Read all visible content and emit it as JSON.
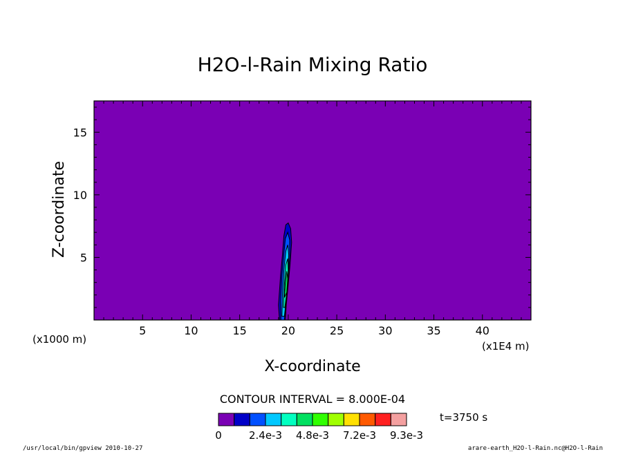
{
  "chart_data": {
    "type": "heatmap",
    "title": "H2O-l-Rain Mixing Ratio",
    "xlabel": "X-coordinate",
    "ylabel": "Z-coordinate",
    "x_unit_left": "(x1000 m)",
    "x_unit_right": "(x1E4 m)",
    "xlim": [
      0,
      45
    ],
    "ylim": [
      0,
      17.5
    ],
    "x_ticks": [
      5,
      10,
      15,
      20,
      25,
      30,
      35,
      40
    ],
    "y_ticks": [
      5,
      10,
      15
    ],
    "background_color": "#7a00b4",
    "contour_interval_label": "CONTOUR INTERVAL = 8.000E-04",
    "time_label": "t=3750 s",
    "colorbar": {
      "colors": [
        "#7a00b4",
        "#0000c8",
        "#0050ff",
        "#00c8ff",
        "#00ffc0",
        "#00e060",
        "#30ff00",
        "#a0ff00",
        "#ffe000",
        "#ff5a00",
        "#ff2020",
        "#f4a0a0"
      ],
      "labels": [
        "0",
        "2.4e-3",
        "4.8e-3",
        "7.2e-3",
        "9.3e-3"
      ],
      "label_index": [
        0,
        3,
        6,
        9,
        12
      ]
    },
    "plume_levels": [
      {
        "level": 1,
        "color": "#0000c8",
        "points": [
          [
            19.1,
            0
          ],
          [
            19.0,
            1.2
          ],
          [
            19.2,
            3.5
          ],
          [
            19.4,
            5.2
          ],
          [
            19.55,
            6.7
          ],
          [
            19.75,
            7.6
          ],
          [
            20.0,
            7.75
          ],
          [
            20.25,
            7.3
          ],
          [
            20.35,
            6.2
          ],
          [
            20.2,
            4.5
          ],
          [
            20.0,
            2.8
          ],
          [
            19.8,
            1.2
          ],
          [
            19.7,
            0
          ]
        ]
      },
      {
        "level": 2,
        "color": "#0050ff",
        "points": [
          [
            19.25,
            0
          ],
          [
            19.2,
            1.5
          ],
          [
            19.35,
            3.6
          ],
          [
            19.55,
            5.3
          ],
          [
            19.7,
            6.5
          ],
          [
            19.95,
            7.0
          ],
          [
            20.15,
            6.4
          ],
          [
            20.15,
            5.0
          ],
          [
            20.0,
            3.2
          ],
          [
            19.8,
            1.4
          ],
          [
            19.6,
            0
          ]
        ]
      },
      {
        "level": 3,
        "color": "#00c8ff",
        "points": [
          [
            19.35,
            0.3
          ],
          [
            19.4,
            2.0
          ],
          [
            19.55,
            4.0
          ],
          [
            19.75,
            5.5
          ],
          [
            19.95,
            6.0
          ],
          [
            20.05,
            5.2
          ],
          [
            20.0,
            3.8
          ],
          [
            19.85,
            2.0
          ],
          [
            19.6,
            0.3
          ]
        ]
      },
      {
        "level": 4,
        "color": "#00ffc0",
        "points": [
          [
            19.5,
            1.0
          ],
          [
            19.6,
            2.8
          ],
          [
            19.75,
            4.4
          ],
          [
            19.95,
            4.9
          ],
          [
            20.0,
            3.8
          ],
          [
            19.85,
            2.2
          ],
          [
            19.65,
            1.0
          ]
        ]
      },
      {
        "level": 5,
        "color": "#00e060",
        "points": [
          [
            19.6,
            1.8
          ],
          [
            19.7,
            3.0
          ],
          [
            19.85,
            3.9
          ],
          [
            19.95,
            3.3
          ],
          [
            19.85,
            2.2
          ]
        ]
      }
    ]
  },
  "footer": {
    "left": "/usr/local/bin/gpview  2010-10-27",
    "right": "arare-earth_H2O-l-Rain.nc@H2O-l-Rain"
  }
}
